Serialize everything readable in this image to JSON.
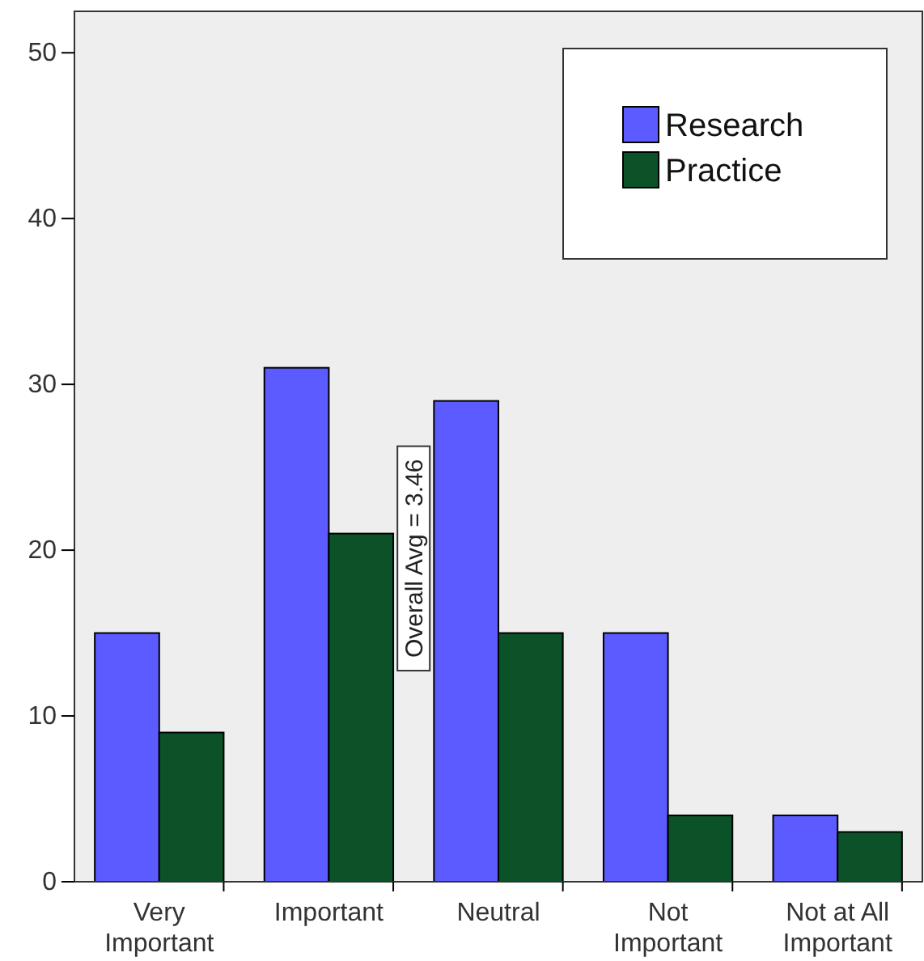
{
  "chart_data": {
    "type": "bar",
    "categories": [
      "Very Important",
      "Important",
      "Neutral",
      "Not Important",
      "Not at All Important"
    ],
    "series": [
      {
        "name": "Research",
        "color": "#5b5bff",
        "values": [
          15,
          31,
          29,
          15,
          4
        ]
      },
      {
        "name": "Practice",
        "color": "#0b5229",
        "values": [
          9,
          21,
          15,
          4,
          3
        ]
      }
    ],
    "ylim": [
      0,
      52.5
    ],
    "yticks": [
      0,
      10,
      20,
      30,
      40,
      50
    ],
    "grid": false,
    "legend": "top right",
    "annotations": [
      "Overall Avg = 3.46"
    ]
  }
}
